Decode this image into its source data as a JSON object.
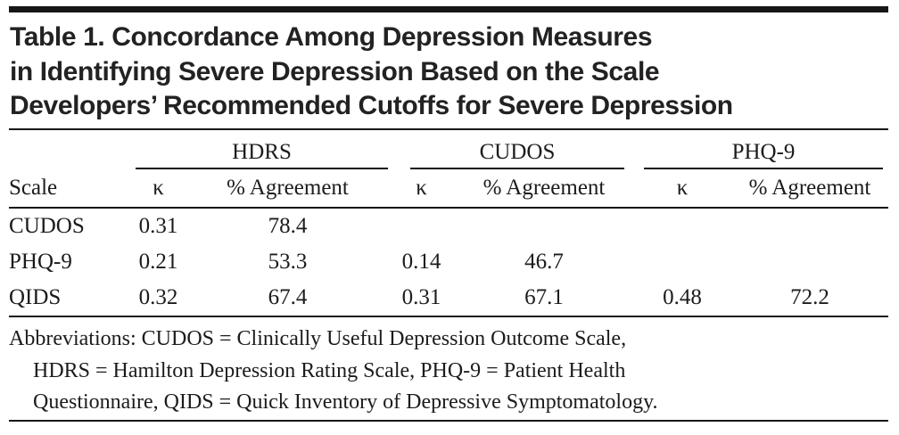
{
  "table": {
    "title_lines": [
      "Table 1. Concordance Among Depression Measures",
      "in Identifying Severe Depression Based on the Scale",
      "Developers’ Recommended Cutoffs for Severe Depression"
    ],
    "column_groups": [
      "HDRS",
      "CUDOS",
      "PHQ-9"
    ],
    "scale_header": "Scale",
    "subheaders": {
      "kappa": "κ",
      "agreement": "% Agreement"
    },
    "rows": [
      {
        "scale": "CUDOS",
        "values": [
          "0.31",
          "78.4",
          "",
          "",
          "",
          ""
        ]
      },
      {
        "scale": "PHQ-9",
        "values": [
          "0.21",
          "53.3",
          "0.14",
          "46.7",
          "",
          ""
        ]
      },
      {
        "scale": "QIDS",
        "values": [
          "0.32",
          "67.4",
          "0.31",
          "67.1",
          "0.48",
          "72.2"
        ]
      }
    ],
    "footnote_lines": [
      "Abbreviations: CUDOS = Clinically Useful Depression Outcome Scale,",
      "HDRS = Hamilton Depression Rating Scale, PHQ-9 = Patient Health",
      "Questionnaire, QIDS = Quick Inventory of Depressive Symptomatology."
    ]
  },
  "chart_data": {
    "type": "table",
    "title": "Table 1. Concordance Among Depression Measures in Identifying Severe Depression Based on the Scale Developers’ Recommended Cutoffs for Severe Depression",
    "column_groups": [
      "HDRS",
      "CUDOS",
      "PHQ-9"
    ],
    "columns": [
      "Scale",
      "HDRS κ",
      "HDRS % Agreement",
      "CUDOS κ",
      "CUDOS % Agreement",
      "PHQ-9 κ",
      "PHQ-9 % Agreement"
    ],
    "rows": [
      [
        "CUDOS",
        0.31,
        78.4,
        null,
        null,
        null,
        null
      ],
      [
        "PHQ-9",
        0.21,
        53.3,
        0.14,
        46.7,
        null,
        null
      ],
      [
        "QIDS",
        0.32,
        67.4,
        0.31,
        67.1,
        0.48,
        72.2
      ]
    ],
    "footnote": "Abbreviations: CUDOS = Clinically Useful Depression Outcome Scale, HDRS = Hamilton Depression Rating Scale, PHQ-9 = Patient Health Questionnaire, QIDS = Quick Inventory of Depressive Symptomatology."
  },
  "colors": {
    "text": "#1d1b1b",
    "rule": "#181616",
    "background": "#ffffff"
  }
}
